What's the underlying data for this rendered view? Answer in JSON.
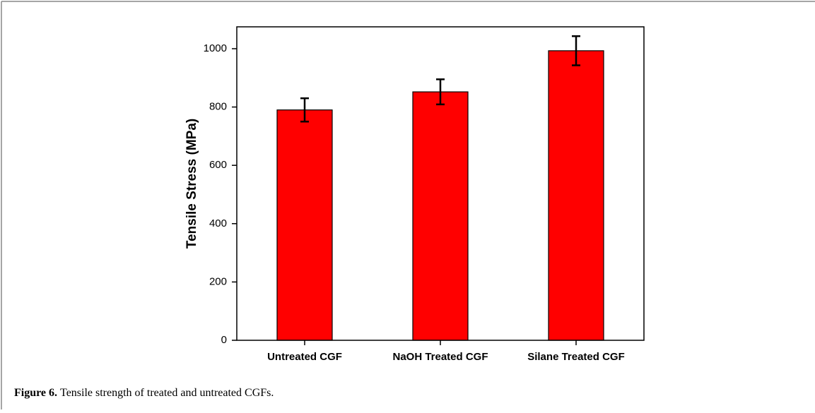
{
  "chart_data": {
    "type": "bar",
    "caption_label": "Figure 6.",
    "caption": "Tensile strength of treated and untreated CGFs.",
    "ylabel": "Tensile Stress (MPa)",
    "categories": [
      "Untreated CGF",
      "NaOH Treated CGF",
      "Silane Treated CGF"
    ],
    "values": [
      790,
      852,
      993
    ],
    "errors": [
      40,
      43,
      50
    ],
    "color": "#ff0000",
    "ylim": [
      0,
      1075
    ],
    "yticks": [
      0,
      200,
      400,
      600,
      800,
      1000
    ],
    "grid": false
  }
}
